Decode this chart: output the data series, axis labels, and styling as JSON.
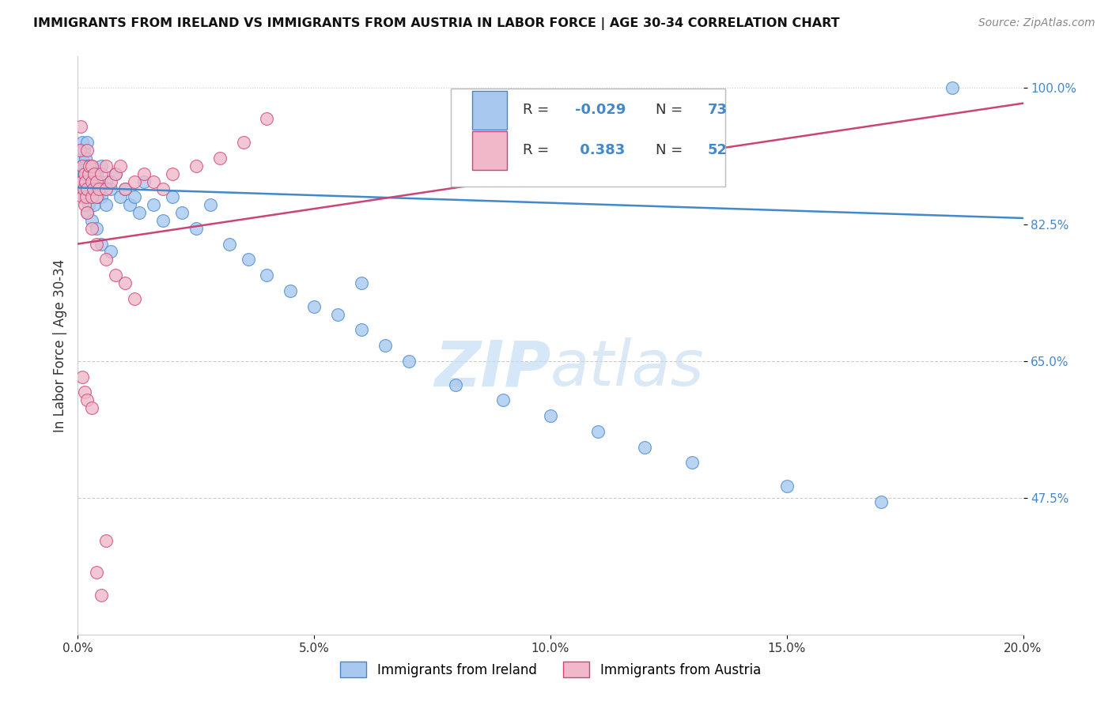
{
  "title": "IMMIGRANTS FROM IRELAND VS IMMIGRANTS FROM AUSTRIA IN LABOR FORCE | AGE 30-34 CORRELATION CHART",
  "source": "Source: ZipAtlas.com",
  "ylabel": "In Labor Force | Age 30-34",
  "xlim": [
    0.0,
    0.2
  ],
  "ylim": [
    0.3,
    1.04
  ],
  "xticks": [
    0.0,
    0.05,
    0.1,
    0.15,
    0.2
  ],
  "xtick_labels": [
    "0.0%",
    "5.0%",
    "10.0%",
    "15.0%",
    "20.0%"
  ],
  "yticks": [
    0.475,
    0.65,
    0.825,
    1.0
  ],
  "ytick_labels": [
    "47.5%",
    "65.0%",
    "82.5%",
    "100.0%"
  ],
  "legend_ireland": "Immigrants from Ireland",
  "legend_austria": "Immigrants from Austria",
  "R_ireland": -0.029,
  "N_ireland": 73,
  "R_austria": 0.383,
  "N_austria": 52,
  "color_ireland": "#a8c8f0",
  "color_austria": "#f0b8c8",
  "line_color_ireland": "#4488cc",
  "line_color_austria": "#cc4477",
  "watermark_zip": "ZIP",
  "watermark_atlas": "atlas",
  "background_color": "#ffffff",
  "ireland_x": [
    0.0005,
    0.0008,
    0.001,
    0.001,
    0.001,
    0.0012,
    0.0012,
    0.0014,
    0.0015,
    0.0015,
    0.0016,
    0.0017,
    0.0018,
    0.002,
    0.002,
    0.002,
    0.002,
    0.0022,
    0.0022,
    0.0025,
    0.003,
    0.003,
    0.003,
    0.0032,
    0.0034,
    0.0035,
    0.004,
    0.004,
    0.0042,
    0.0045,
    0.005,
    0.005,
    0.005,
    0.006,
    0.006,
    0.007,
    0.008,
    0.009,
    0.01,
    0.011,
    0.012,
    0.013,
    0.014,
    0.016,
    0.018,
    0.02,
    0.022,
    0.025,
    0.028,
    0.032,
    0.036,
    0.04,
    0.045,
    0.05,
    0.055,
    0.06,
    0.065,
    0.07,
    0.08,
    0.09,
    0.1,
    0.11,
    0.12,
    0.13,
    0.15,
    0.17,
    0.185,
    0.002,
    0.003,
    0.004,
    0.005,
    0.007,
    0.06
  ],
  "ireland_y": [
    0.88,
    0.9,
    0.87,
    0.91,
    0.93,
    0.89,
    0.92,
    0.88,
    0.9,
    0.86,
    0.91,
    0.89,
    0.87,
    0.88,
    0.9,
    0.86,
    0.93,
    0.87,
    0.85,
    0.89,
    0.88,
    0.86,
    0.9,
    0.87,
    0.85,
    0.88,
    0.89,
    0.87,
    0.86,
    0.88,
    0.87,
    0.9,
    0.86,
    0.88,
    0.85,
    0.87,
    0.89,
    0.86,
    0.87,
    0.85,
    0.86,
    0.84,
    0.88,
    0.85,
    0.83,
    0.86,
    0.84,
    0.82,
    0.85,
    0.8,
    0.78,
    0.76,
    0.74,
    0.72,
    0.71,
    0.69,
    0.67,
    0.65,
    0.62,
    0.6,
    0.58,
    0.56,
    0.54,
    0.52,
    0.49,
    0.47,
    1.0,
    0.84,
    0.83,
    0.82,
    0.8,
    0.79,
    0.75
  ],
  "austria_x": [
    0.0004,
    0.0006,
    0.0008,
    0.001,
    0.001,
    0.0012,
    0.0014,
    0.0015,
    0.0016,
    0.0018,
    0.002,
    0.002,
    0.0022,
    0.0025,
    0.003,
    0.003,
    0.003,
    0.0032,
    0.0035,
    0.004,
    0.004,
    0.0045,
    0.005,
    0.006,
    0.006,
    0.007,
    0.008,
    0.009,
    0.01,
    0.012,
    0.014,
    0.016,
    0.018,
    0.02,
    0.025,
    0.03,
    0.035,
    0.04,
    0.002,
    0.003,
    0.004,
    0.006,
    0.008,
    0.01,
    0.012,
    0.001,
    0.0015,
    0.002,
    0.003,
    0.004,
    0.005,
    0.006
  ],
  "austria_y": [
    0.92,
    0.95,
    0.88,
    0.86,
    0.9,
    0.87,
    0.89,
    0.85,
    0.88,
    0.86,
    0.92,
    0.87,
    0.89,
    0.9,
    0.88,
    0.86,
    0.9,
    0.87,
    0.89,
    0.86,
    0.88,
    0.87,
    0.89,
    0.9,
    0.87,
    0.88,
    0.89,
    0.9,
    0.87,
    0.88,
    0.89,
    0.88,
    0.87,
    0.89,
    0.9,
    0.91,
    0.93,
    0.96,
    0.84,
    0.82,
    0.8,
    0.78,
    0.76,
    0.75,
    0.73,
    0.63,
    0.61,
    0.6,
    0.59,
    0.38,
    0.35,
    0.42
  ],
  "ireland_trendline": [
    0.872,
    0.833
  ],
  "austria_trendline": [
    0.8,
    0.98
  ]
}
